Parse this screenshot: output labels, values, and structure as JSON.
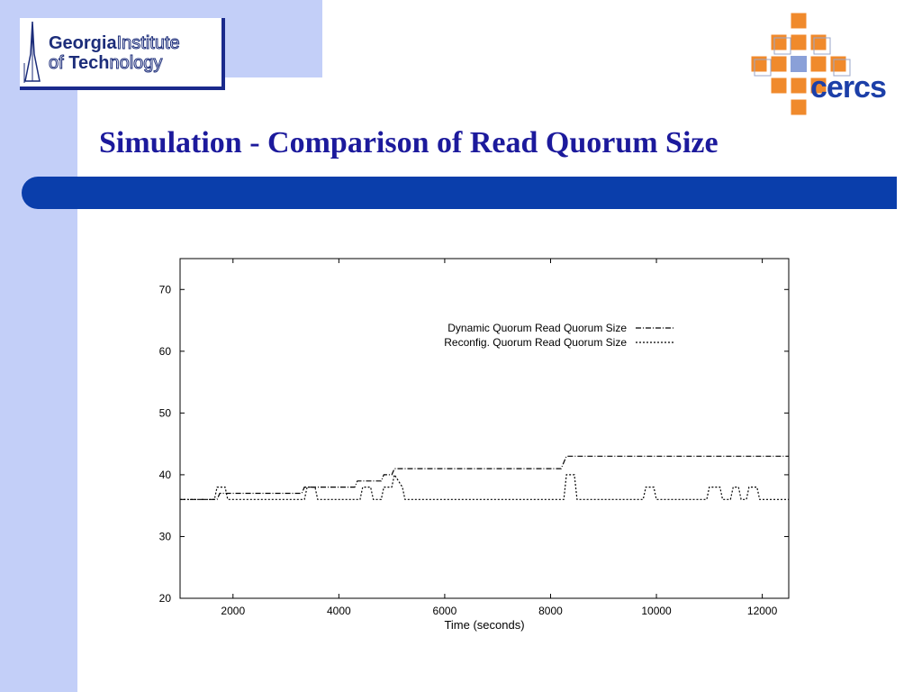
{
  "logo": {
    "gt_line1_bold": "Georgia",
    "gt_line1_outline": "Institute",
    "gt_line2_outline": "of ",
    "gt_line2_bold": "Tech",
    "gt_line2_outline2": "nology",
    "cercs_text": "cercs"
  },
  "slide": {
    "title": "Simulation - Comparison of Read Quorum Size"
  },
  "colors": {
    "band": "#c3cff8",
    "title": "#1c1a9c",
    "bar": "#0a3eab",
    "cercs_orange": "#f08a2c"
  },
  "chart_data": {
    "type": "line",
    "title": "",
    "xlabel": "Time (seconds)",
    "ylabel": "",
    "xlim": [
      1000,
      12500
    ],
    "ylim": [
      20,
      75
    ],
    "xticks": [
      2000,
      4000,
      6000,
      8000,
      10000,
      12000
    ],
    "yticks": [
      20,
      30,
      40,
      50,
      60,
      70
    ],
    "legend_position": "top-right",
    "grid": false,
    "series": [
      {
        "name": "Dynamic Quorum Read Quorum Size",
        "style": "dash-dot",
        "x": [
          1000,
          1700,
          1750,
          3300,
          3350,
          4300,
          4350,
          4800,
          4850,
          5000,
          5050,
          8200,
          8300,
          12500
        ],
        "y": [
          36,
          36,
          37,
          37,
          38,
          38,
          39,
          39,
          40,
          40,
          41,
          41,
          43,
          43
        ]
      },
      {
        "name": "Reconfig. Quorum  Read Quorum Size",
        "style": "dotted",
        "x": [
          1000,
          1650,
          1700,
          1850,
          1900,
          3350,
          3400,
          3550,
          3600,
          4400,
          4450,
          4600,
          4650,
          4800,
          4850,
          5000,
          5050,
          5200,
          5250,
          8250,
          8300,
          8450,
          8500,
          9750,
          9800,
          9950,
          10000,
          10950,
          11000,
          11200,
          11250,
          11400,
          11450,
          11550,
          11600,
          11700,
          11750,
          11900,
          11950,
          12500
        ],
        "y": [
          36,
          36,
          38,
          38,
          36,
          36,
          38,
          38,
          36,
          36,
          38,
          38,
          36,
          36,
          38,
          38,
          40,
          38,
          36,
          36,
          40,
          40,
          36,
          36,
          38,
          38,
          36,
          36,
          38,
          38,
          36,
          36,
          38,
          38,
          36,
          36,
          38,
          38,
          36,
          36
        ]
      }
    ]
  }
}
